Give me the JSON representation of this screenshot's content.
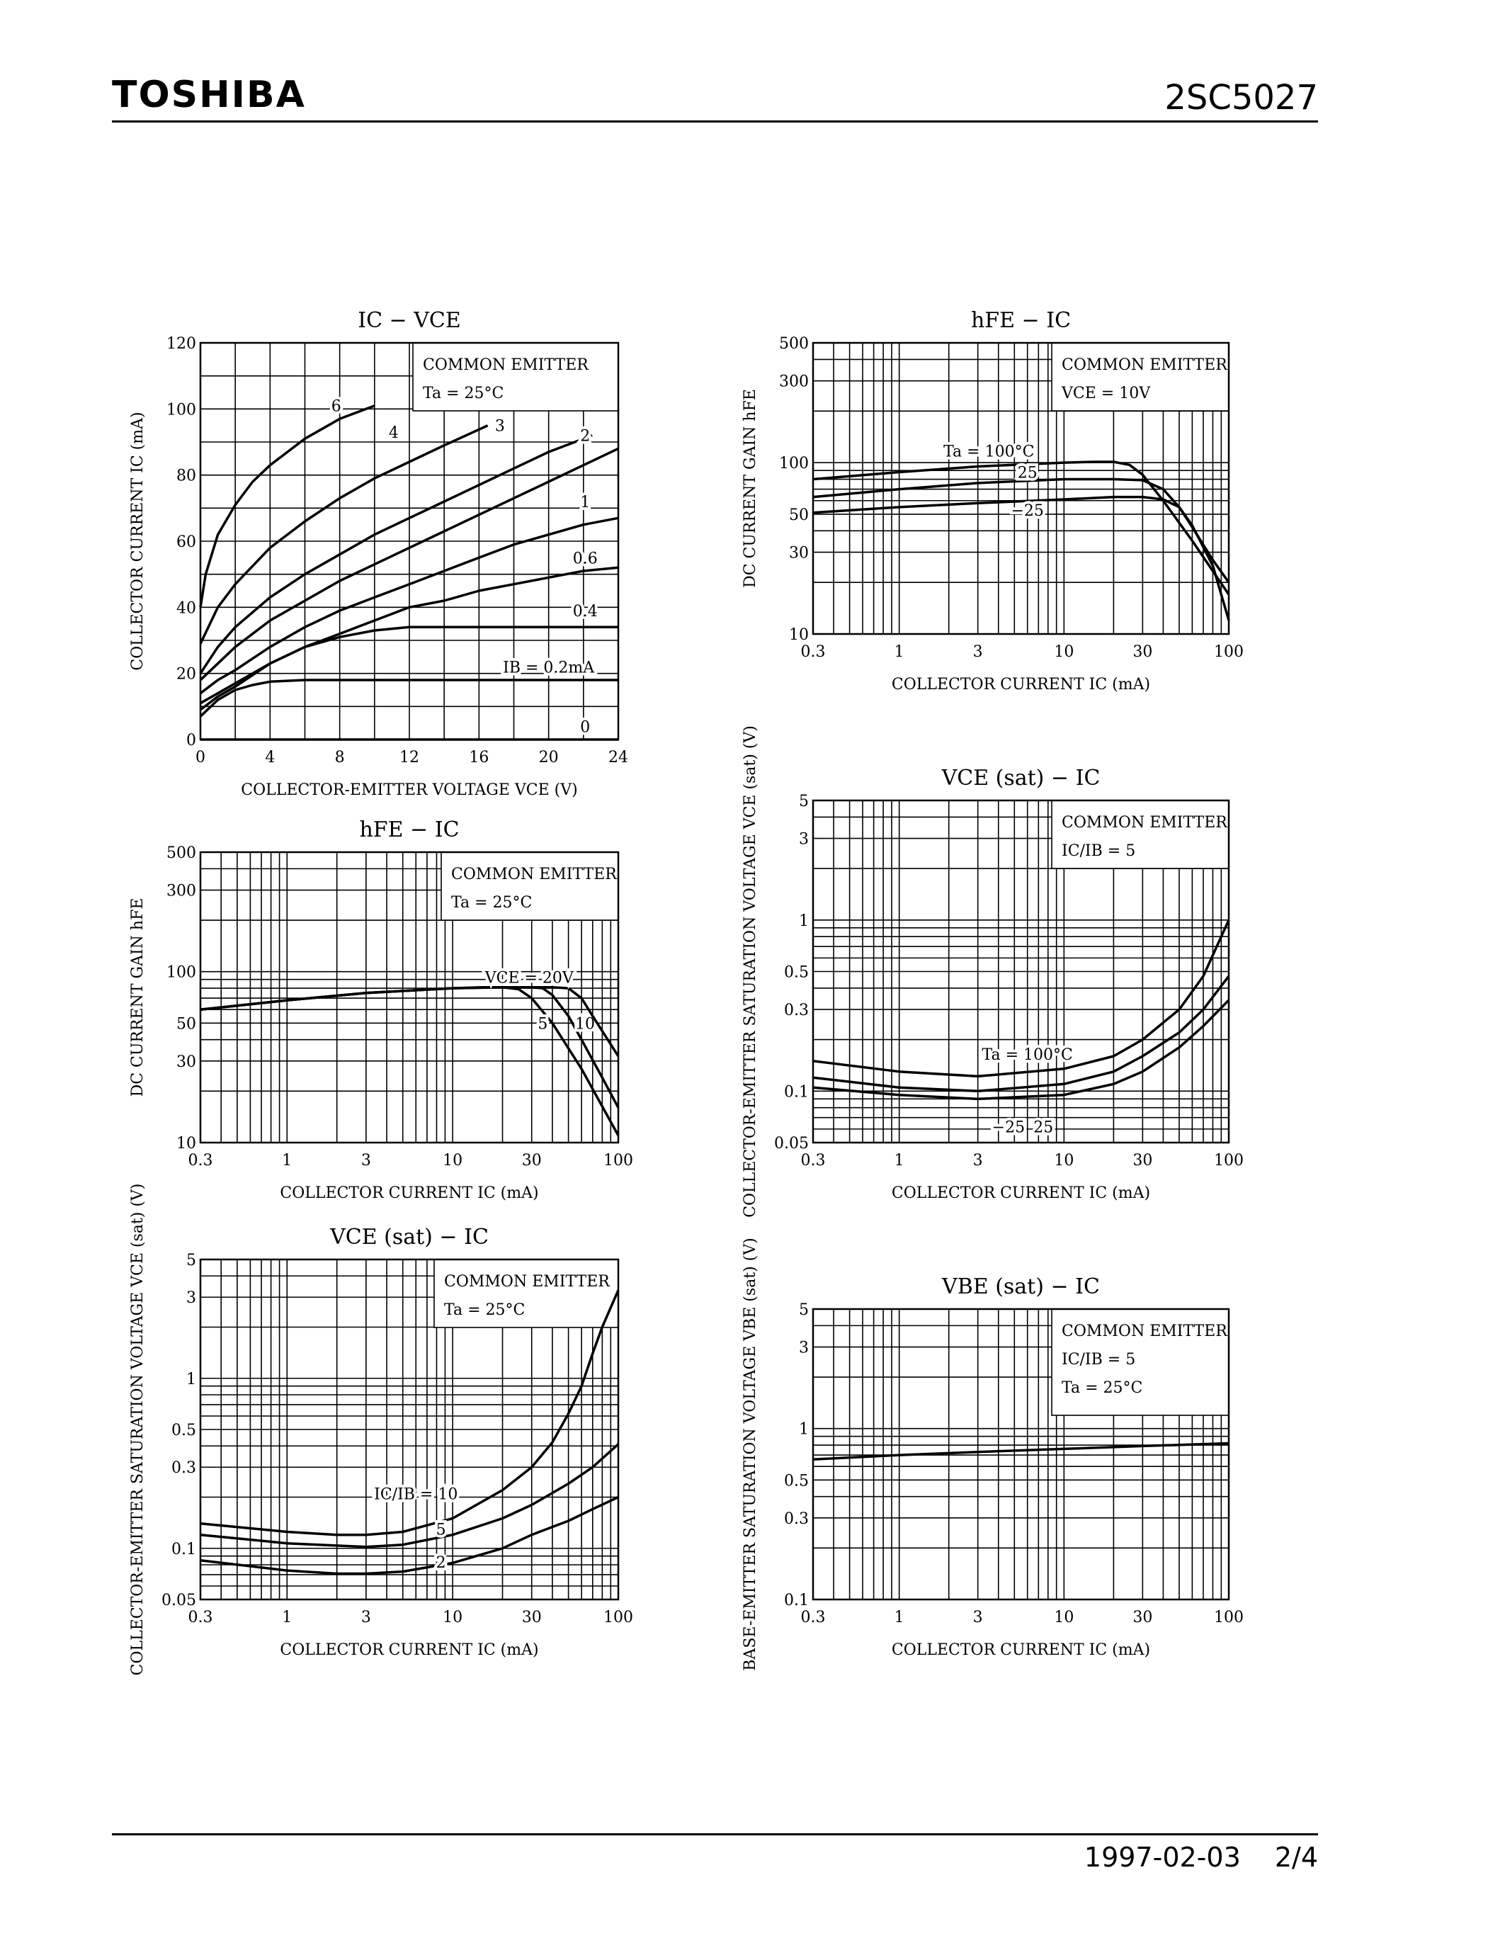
{
  "header": {
    "brand": "TOSHIBA",
    "part_number": "2SC5027"
  },
  "footer": {
    "date": "1997-02-03",
    "page": "2/4"
  },
  "chart_data": [
    {
      "id": "c1",
      "type": "line",
      "title": "IC − VCE",
      "xlabel": "COLLECTOR-EMITTER VOLTAGE   VCE   (V)",
      "ylabel": "COLLECTOR CURRENT   IC   (mA)",
      "xscale": "linear",
      "yscale": "linear",
      "xlim": [
        0,
        24
      ],
      "ylim": [
        0,
        120
      ],
      "xticks": [
        0,
        4,
        8,
        12,
        16,
        20,
        24
      ],
      "yticks": [
        0,
        20,
        40,
        60,
        80,
        100,
        120
      ],
      "xgrid": [
        2,
        4,
        6,
        8,
        10,
        12,
        14,
        16,
        18,
        20,
        22
      ],
      "ygrid": [
        10,
        20,
        30,
        40,
        50,
        60,
        70,
        80,
        90,
        100,
        110
      ],
      "legend_lines": [
        "COMMON EMITTER",
        "Ta = 25°C"
      ],
      "series": [
        {
          "label": "6",
          "x": [
            0,
            0.3,
            1,
            2,
            3,
            4,
            5,
            6,
            7,
            8,
            9,
            10
          ],
          "y": [
            40,
            50,
            62,
            71,
            78,
            83,
            87,
            91,
            94,
            97,
            99,
            101
          ],
          "lx": 7.8,
          "ly": 101
        },
        {
          "label": "4",
          "x": [
            0,
            1,
            2,
            4,
            6,
            8,
            10,
            12,
            14,
            16.5
          ],
          "y": [
            29,
            40,
            47,
            58,
            66,
            73,
            79,
            84,
            89,
            95
          ],
          "lx": 11.1,
          "ly": 93
        },
        {
          "label": "3",
          "x": [
            0,
            1,
            2,
            4,
            6,
            8,
            10,
            12,
            14,
            16,
            18,
            20,
            22.5
          ],
          "y": [
            20,
            28,
            34,
            43,
            50,
            56,
            62,
            67,
            72,
            77,
            82,
            87,
            92
          ],
          "lx": 17.2,
          "ly": 95
        },
        {
          "label": "2",
          "x": [
            0,
            1,
            2,
            4,
            6,
            8,
            10,
            12,
            14,
            16,
            18,
            20,
            22,
            24
          ],
          "y": [
            18,
            23,
            28,
            36,
            42,
            48,
            53,
            58,
            63,
            68,
            73,
            78,
            83,
            88
          ],
          "lx": 22.1,
          "ly": 92
        },
        {
          "label": "1",
          "x": [
            0,
            1,
            2,
            4,
            6,
            8,
            10,
            12,
            14,
            16,
            18,
            20,
            22,
            24
          ],
          "y": [
            14,
            18,
            21,
            28,
            34,
            39,
            43,
            47,
            51,
            55,
            59,
            62,
            65,
            67
          ],
          "lx": 22.1,
          "ly": 72
        },
        {
          "label": "0.6",
          "x": [
            0,
            1,
            2,
            4,
            6,
            8,
            10,
            12,
            14,
            16,
            18,
            20,
            22,
            24
          ],
          "y": [
            11,
            14,
            17,
            23,
            28,
            32,
            36,
            40,
            42,
            45,
            47,
            49,
            51,
            52
          ],
          "lx": 22.1,
          "ly": 55
        },
        {
          "label": "0.4",
          "x": [
            0,
            1,
            2,
            4,
            6,
            8,
            10,
            12,
            14,
            16,
            18,
            20,
            22,
            24
          ],
          "y": [
            9,
            13,
            16,
            23,
            28,
            31,
            33,
            34,
            34,
            34,
            34,
            34,
            34,
            34
          ],
          "lx": 22.1,
          "ly": 39
        },
        {
          "label": "IB = 0.2mA",
          "x": [
            0,
            1,
            2,
            3,
            4,
            6,
            8,
            12,
            24
          ],
          "y": [
            7,
            12,
            15,
            16.5,
            17.5,
            18,
            18,
            18,
            18
          ],
          "lx": 20,
          "ly": 22
        },
        {
          "label": "0",
          "x": [
            0,
            24
          ],
          "y": [
            0,
            0
          ],
          "lx": 22.1,
          "ly": 4
        }
      ]
    },
    {
      "id": "c2",
      "type": "line",
      "title": "hFE − IC",
      "xlabel": "COLLECTOR CURRENT   IC   (mA)",
      "ylabel": "DC CURRENT GAIN   hFE",
      "xscale": "log",
      "yscale": "log",
      "xlim": [
        0.3,
        100
      ],
      "ylim": [
        10,
        500
      ],
      "xticks": [
        0.3,
        1,
        3,
        10,
        30,
        100
      ],
      "yticks": [
        10,
        30,
        50,
        100,
        300,
        500
      ],
      "legend_lines": [
        "COMMON EMITTER",
        "VCE = 10V"
      ],
      "series": [
        {
          "label": "Ta = 100°C",
          "x": [
            0.3,
            1,
            3,
            10,
            15,
            20,
            25,
            30,
            40,
            60,
            100
          ],
          "y": [
            80,
            88,
            95,
            100,
            101,
            101,
            97,
            85,
            60,
            35,
            17
          ],
          "lx": 3.5,
          "ly": 117
        },
        {
          "label": "25",
          "x": [
            0.3,
            1,
            3,
            10,
            20,
            30,
            40,
            50,
            60,
            80,
            100
          ],
          "y": [
            63,
            70,
            76,
            80,
            80,
            79,
            70,
            55,
            42,
            27,
            20
          ],
          "lx": 6,
          "ly": 88
        },
        {
          "label": "−25",
          "x": [
            0.3,
            1,
            3,
            10,
            20,
            30,
            40,
            50,
            60,
            80,
            100
          ],
          "y": [
            51,
            55,
            58,
            61,
            63,
            63,
            61,
            55,
            43,
            25,
            12
          ],
          "lx": 6,
          "ly": 53
        }
      ]
    },
    {
      "id": "c3",
      "type": "line",
      "title": "hFE − IC",
      "xlabel": "COLLECTOR CURRENT   IC   (mA)",
      "ylabel": "DC CURRENT GAIN   hFE",
      "xscale": "log",
      "yscale": "log",
      "xlim": [
        0.3,
        100
      ],
      "ylim": [
        10,
        500
      ],
      "xticks": [
        0.3,
        1,
        3,
        10,
        30,
        100
      ],
      "yticks": [
        10,
        30,
        50,
        100,
        300,
        500
      ],
      "legend_lines": [
        "COMMON EMITTER",
        "Ta = 25°C"
      ],
      "series": [
        {
          "label": "5",
          "x": [
            0.3,
            1,
            3,
            10,
            15,
            20,
            25,
            30,
            40,
            60,
            100
          ],
          "y": [
            60,
            68,
            75,
            80,
            81,
            81,
            79,
            70,
            50,
            27,
            11
          ],
          "lx": 35,
          "ly": 50
        },
        {
          "label": "10",
          "x": [
            0.3,
            1,
            3,
            10,
            20,
            30,
            35,
            40,
            50,
            60,
            80,
            100
          ],
          "y": [
            60,
            68,
            75,
            80,
            81,
            81,
            80,
            73,
            55,
            40,
            24,
            16
          ],
          "lx": 63,
          "ly": 50
        },
        {
          "label": "VCE = 20V",
          "x": [
            0.3,
            1,
            3,
            10,
            20,
            40,
            50,
            60,
            70,
            80,
            100
          ],
          "y": [
            60,
            68,
            75,
            80,
            81,
            81,
            80,
            70,
            55,
            45,
            32
          ],
          "lx": 29,
          "ly": 93
        }
      ]
    },
    {
      "id": "c4",
      "type": "line",
      "title": "VCE (sat) − IC",
      "xlabel": "COLLECTOR CURRENT   IC   (mA)",
      "ylabel": "COLLECTOR-EMITTER SATURATION VOLTAGE   VCE (sat)   (V)",
      "xscale": "log",
      "yscale": "log",
      "xlim": [
        0.3,
        100
      ],
      "ylim": [
        0.05,
        5
      ],
      "xticks": [
        0.3,
        1,
        3,
        10,
        30,
        100
      ],
      "yticks": [
        0.05,
        0.1,
        0.3,
        0.5,
        1,
        3,
        5
      ],
      "legend_lines": [
        "COMMON EMITTER",
        "IC/IB = 5"
      ],
      "series": [
        {
          "label": "Ta = 100°C",
          "x": [
            0.3,
            1,
            3,
            10,
            20,
            30,
            50,
            70,
            100
          ],
          "y": [
            0.15,
            0.13,
            0.122,
            0.135,
            0.16,
            0.2,
            0.3,
            0.47,
            1.0
          ],
          "lx": 6,
          "ly": 0.165
        },
        {
          "label": "25",
          "x": [
            0.3,
            1,
            3,
            10,
            20,
            30,
            50,
            70,
            100
          ],
          "y": [
            0.12,
            0.105,
            0.1,
            0.11,
            0.13,
            0.16,
            0.22,
            0.3,
            0.47
          ],
          "lx": 7.5,
          "ly": 0.062
        },
        {
          "label": "−25",
          "x": [
            0.3,
            1,
            3,
            10,
            20,
            30,
            50,
            70,
            100
          ],
          "y": [
            0.105,
            0.095,
            0.09,
            0.095,
            0.11,
            0.13,
            0.18,
            0.24,
            0.34
          ],
          "lx": 4.6,
          "ly": 0.062
        }
      ]
    },
    {
      "id": "c5",
      "type": "line",
      "title": "VCE (sat) − IC",
      "xlabel": "COLLECTOR CURRENT   IC   (mA)",
      "ylabel": "COLLECTOR-EMITTER SATURATION VOLTAGE   VCE (sat)   (V)",
      "xscale": "log",
      "yscale": "log",
      "xlim": [
        0.3,
        100
      ],
      "ylim": [
        0.05,
        5
      ],
      "xticks": [
        0.3,
        1,
        3,
        10,
        30,
        100
      ],
      "yticks": [
        0.05,
        0.1,
        0.3,
        0.5,
        1,
        3,
        5
      ],
      "legend_lines": [
        "COMMON EMITTER",
        "Ta = 25°C"
      ],
      "series": [
        {
          "label": "IC/IB = 10",
          "x": [
            0.3,
            1,
            2,
            3,
            5,
            10,
            20,
            30,
            40,
            50,
            60,
            70,
            80,
            100
          ],
          "y": [
            0.14,
            0.125,
            0.12,
            0.12,
            0.125,
            0.15,
            0.22,
            0.3,
            0.42,
            0.62,
            0.9,
            1.4,
            2.0,
            3.3
          ],
          "lx": 6,
          "ly": 0.21
        },
        {
          "label": "5",
          "x": [
            0.3,
            1,
            3,
            5,
            10,
            20,
            30,
            50,
            70,
            100
          ],
          "y": [
            0.12,
            0.107,
            0.102,
            0.105,
            0.12,
            0.15,
            0.18,
            0.24,
            0.3,
            0.41
          ],
          "lx": 8.5,
          "ly": 0.13
        },
        {
          "label": "2",
          "x": [
            0.3,
            1,
            2,
            3,
            5,
            10,
            20,
            30,
            50,
            70,
            100
          ],
          "y": [
            0.085,
            0.074,
            0.071,
            0.071,
            0.073,
            0.082,
            0.1,
            0.12,
            0.145,
            0.17,
            0.2
          ],
          "lx": 8.5,
          "ly": 0.083
        }
      ]
    },
    {
      "id": "c6",
      "type": "line",
      "title": "VBE (sat) − IC",
      "xlabel": "COLLECTOR CURRENT   IC   (mA)",
      "ylabel": "BASE-EMITTER SATURATION VOLTAGE   VBE (sat)   (V)",
      "xscale": "log",
      "yscale": "log",
      "xlim": [
        0.3,
        100
      ],
      "ylim": [
        0.1,
        5
      ],
      "xticks": [
        0.3,
        1,
        3,
        10,
        30,
        100
      ],
      "yticks": [
        0.1,
        0.3,
        0.5,
        1,
        3,
        5
      ],
      "legend_lines": [
        "COMMON EMITTER",
        "IC/IB = 5",
        "Ta = 25°C"
      ],
      "series": [
        {
          "label": "",
          "x": [
            0.3,
            1,
            3,
            10,
            30,
            100
          ],
          "y": [
            0.66,
            0.7,
            0.73,
            0.76,
            0.79,
            0.82
          ]
        }
      ]
    }
  ]
}
